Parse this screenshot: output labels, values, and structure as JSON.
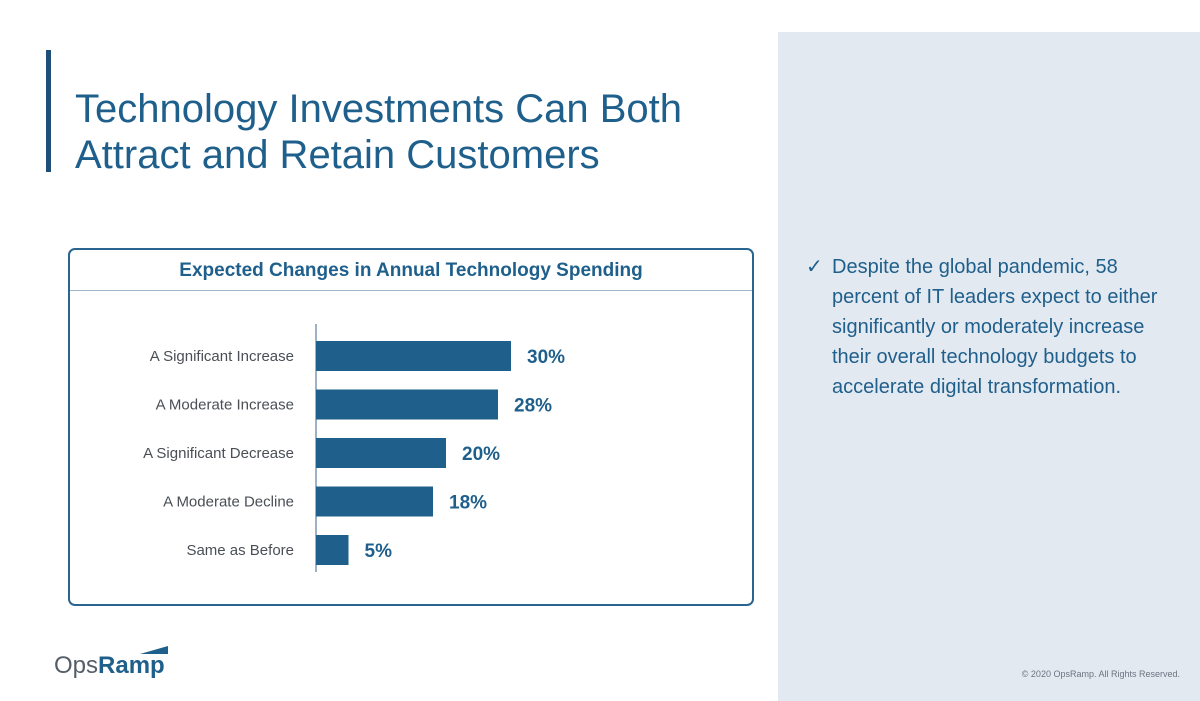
{
  "slide": {
    "title": "Technology Investments Can Both Attract and Retain Customers",
    "bullet_text": "Despite the global pandemic, 58 percent of IT leaders expect to either significantly or moderately increase their overall technology budgets to accelerate digital transformation.",
    "check_icon": "✓",
    "copyright": "© 2020 OpsRamp. All Rights Reserved.",
    "logo": {
      "part1": "Ops",
      "part2": "Ramp"
    }
  },
  "colors": {
    "accent": "#1f5f8b",
    "bar": "#1f5f8b",
    "panel": "#e3e9f1",
    "box_border": "#2a6591"
  },
  "chart_data": {
    "type": "bar",
    "orientation": "horizontal",
    "title": "Expected Changes in Annual Technology Spending",
    "categories": [
      "A Significant Increase",
      "A Moderate Increase",
      "A Significant Decrease",
      "A Moderate Decline",
      "Same as Before"
    ],
    "values": [
      30,
      28,
      20,
      18,
      5
    ],
    "data_labels": [
      "30%",
      "28%",
      "20%",
      "18%",
      "5%"
    ],
    "xlim": [
      0,
      100
    ],
    "grid": false,
    "legend": "none"
  }
}
